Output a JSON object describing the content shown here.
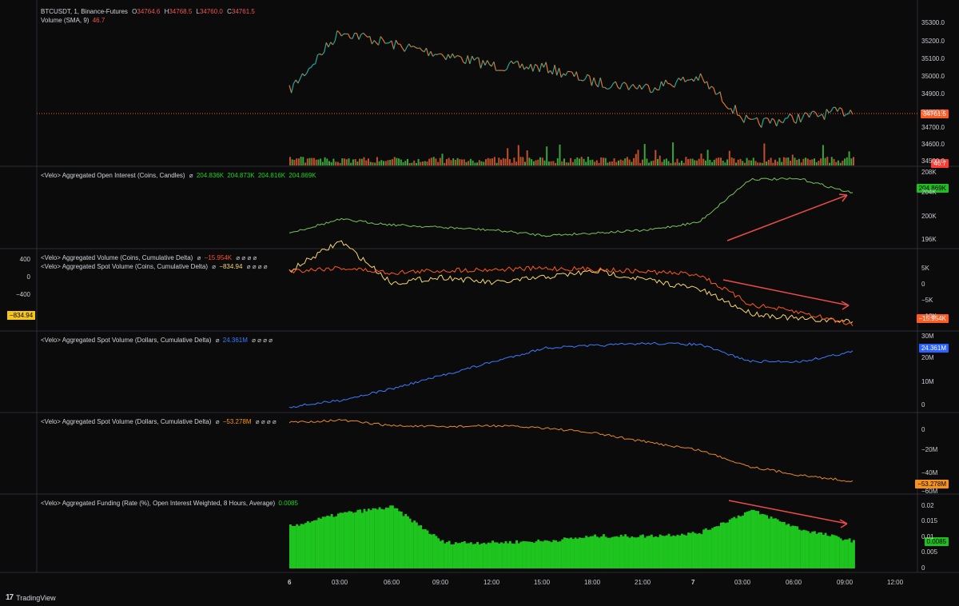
{
  "app": {
    "brand": "TradingView",
    "brand_icon": "tv-logo-icon"
  },
  "colors": {
    "bg": "#0b0b0b",
    "up": "#26a69a",
    "down": "#ef5350",
    "green": "#1fd11f",
    "orange": "#f7931a",
    "red": "#ff4d2d",
    "blue": "#2962ff",
    "yellow": "#f5d76e",
    "arrow": "#e84b4b",
    "sep": "#2a2e39"
  },
  "panes": [
    {
      "id": "price",
      "legend": {
        "line1_prefix": "BTCUSDT, 1, Binance-Futures",
        "o_label": "O",
        "o": "34764.6",
        "h_label": "H",
        "h": "34768.5",
        "l_label": "L",
        "l": "34760.0",
        "c_label": "C",
        "c": "34761.5",
        "line2_prefix": "Volume (SMA, 9)",
        "vol": "46.7"
      },
      "axis_labels": [
        "35300.0",
        "35200.0",
        "35100.0",
        "35000.0",
        "34900.0",
        "34800.0",
        "34700.0",
        "34600.0",
        "34500.0"
      ],
      "tags": {
        "price": "34761.5",
        "volume": "46.7"
      }
    },
    {
      "id": "oi",
      "legend": {
        "prefix": "<Velo> Aggregated Open Interest (Coins, Candles)",
        "glyph": "⌀",
        "values": [
          "204.836K",
          "204.873K",
          "204.816K",
          "204.869K"
        ]
      },
      "axis_labels": [
        "208K",
        "204K",
        "200K",
        "196K"
      ],
      "tag": "204.869K"
    },
    {
      "id": "vol_delta",
      "legend1": {
        "prefix": "<Velo> Aggregated Volume (Coins, Cumulative Delta)",
        "glyph": "⌀",
        "value": "−15.954K",
        "trail": "⌀ ⌀ ⌀ ⌀"
      },
      "legend2": {
        "prefix": "<Velo> Aggregated Spot Volume (Coins, Cumulative Delta)",
        "glyph": "⌀",
        "value": "−834.94",
        "trail": "⌀ ⌀ ⌀ ⌀"
      },
      "axis_labels": [
        "5K",
        "0",
        "−5K",
        "−10K"
      ],
      "left_axis_labels": [
        "400",
        "0",
        "−400"
      ],
      "tag": "−15.954K",
      "left_tag": "−834.94"
    },
    {
      "id": "spot_usd_1",
      "legend": {
        "prefix": "<Velo> Aggregated Spot Volume (Dollars, Cumulative Delta)",
        "glyph": "⌀",
        "value": "24.361M",
        "trail": "⌀ ⌀ ⌀ ⌀"
      },
      "axis_labels": [
        "30M",
        "20M",
        "10M",
        "0"
      ],
      "tag": "24.361M"
    },
    {
      "id": "spot_usd_2",
      "legend": {
        "prefix": "<Velo> Aggregated Spot Volume (Dollars, Cumulative Delta)",
        "glyph": "⌀",
        "value": "−53.278M",
        "trail": "⌀ ⌀ ⌀ ⌀"
      },
      "axis_labels": [
        "0",
        "−20M",
        "−40M",
        "−60M"
      ],
      "tag": "−53.278M"
    },
    {
      "id": "funding",
      "legend": {
        "prefix": "<Velo> Aggregated Funding (Rate (%), Open Interest Weighted, 8 Hours, Average)",
        "value": "0.0085"
      },
      "axis_labels": [
        "0.02",
        "0.015",
        "0.01",
        "0.005",
        "0"
      ],
      "tag": "0.0085"
    }
  ],
  "time_axis": [
    "6",
    "03:00",
    "06:00",
    "09:00",
    "12:00",
    "15:00",
    "18:00",
    "21:00",
    "7",
    "03:00",
    "06:00",
    "09:00",
    "12:00"
  ],
  "chart_data": {
    "type": "line",
    "title": "BTCUSDT, 1, Binance-Futures",
    "x": [
      "6",
      "03:00",
      "06:00",
      "09:00",
      "12:00",
      "15:00",
      "18:00",
      "21:00",
      "7",
      "03:00",
      "06:00",
      "09:00"
    ],
    "series": [
      {
        "name": "BTCUSDT",
        "values": [
          34880,
          35240,
          35160,
          35100,
          35030,
          35020,
          34930,
          34900,
          34960,
          34680,
          34720,
          34762
        ]
      },
      {
        "name": "<Velo> Aggregated Open Interest (Coins, Candles)",
        "values": [
          197500,
          200000,
          199000,
          198500,
          198000,
          197000,
          197500,
          198000,
          199500,
          207500,
          207500,
          204869
        ]
      },
      {
        "name": "<Velo> Aggregated Volume (Coins, Cumulative Delta)",
        "values": [
          0,
          1000,
          -500,
          200,
          500,
          800,
          500,
          -200,
          -1000,
          -10000,
          -12500,
          -15954
        ]
      },
      {
        "name": "<Velo> Aggregated Spot Volume (Coins, Cumulative Delta)",
        "values": [
          0,
          500,
          -200,
          -100,
          -200,
          -100,
          0,
          -150,
          -300,
          -700,
          -800,
          -834.94
        ]
      },
      {
        "name": "<Velo> Aggregated Spot Volume (Dollars, Cumulative Delta)",
        "values": [
          0,
          3000000,
          8000000,
          14000000,
          20000000,
          26000000,
          27000000,
          28000000,
          27500000,
          20000000,
          20000000,
          24361000
        ]
      },
      {
        "name": "<Velo> Aggregated Spot Volume (Dollars, Cumulative Delta)",
        "values": [
          0,
          2000000,
          -3000000,
          -4000000,
          -3000000,
          -5000000,
          -10000000,
          -18000000,
          -25000000,
          -40000000,
          -48000000,
          -53278000
        ]
      },
      {
        "name": "<Velo> Aggregated Funding (Rate (%), Open Interest Weighted, 8 Hours, Average)",
        "values": [
          0.013,
          0.017,
          0.019,
          0.008,
          0.008,
          0.0085,
          0.01,
          0.01,
          0.011,
          0.018,
          0.012,
          0.0085
        ]
      }
    ]
  }
}
